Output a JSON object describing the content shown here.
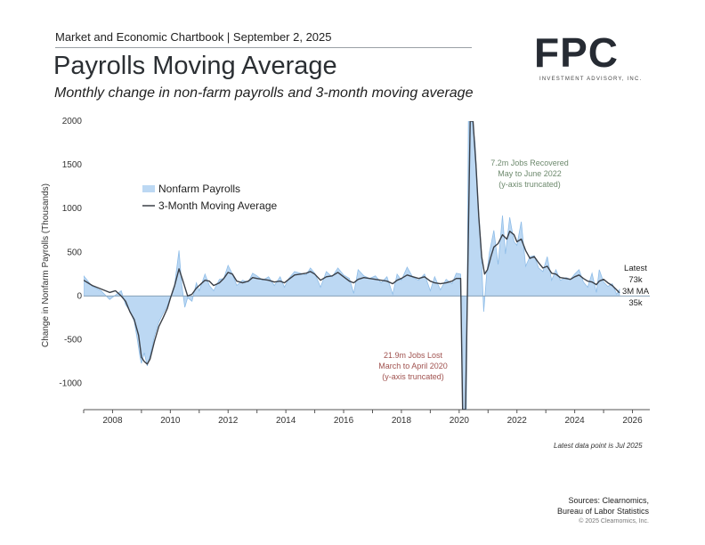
{
  "header": {
    "topline": "Market and Economic Chartbook | September 2, 2025",
    "title": "Payrolls Moving Average",
    "subtitle": "Monthly change in non-farm payrolls and 3-month moving average"
  },
  "logo": {
    "mark": "FPC",
    "sub": "INVESTMENT ADVISORY, INC."
  },
  "footer": {
    "latest_note": "Latest data point is Jul 2025",
    "sources_line1": "Sources: Clearnomics,",
    "sources_line2": "Bureau of Labor Statistics",
    "copyright": "© 2025 Clearnomics, Inc."
  },
  "colors": {
    "bars": "#bcd8f3",
    "bars_edge": "#8fbde8",
    "ma_line": "#3a3f47",
    "zero_line": "#8aa3b8",
    "annot_green": "#6e8a6e",
    "annot_red": "#a0524f"
  },
  "chart_data": {
    "type": "area",
    "ylabel": "Change in Nonfarm Payrolls (Thousands)",
    "ylim": [
      -1300,
      2000
    ],
    "yticks": [
      2000,
      1500,
      1000,
      500,
      0,
      -500,
      -1000
    ],
    "ytick_labels": [
      "2000",
      "1500",
      "1000",
      "500",
      "0",
      "-500",
      "-1000"
    ],
    "xlim": [
      2007.0,
      2026.6
    ],
    "xticks": [
      2008,
      2010,
      2012,
      2014,
      2016,
      2018,
      2020,
      2022,
      2024,
      2026
    ],
    "xtick_labels": [
      "2008",
      "2010",
      "2012",
      "2014",
      "2016",
      "2018",
      "2020",
      "2022",
      "2024",
      "2026"
    ],
    "legend": {
      "position": "upper-left",
      "entries": [
        "Nonfarm Payrolls",
        "3-Month Moving Average"
      ]
    },
    "series": [
      {
        "name": "Nonfarm Payrolls",
        "style": "filled-area",
        "points": [
          [
            2007.0,
            230
          ],
          [
            2007.3,
            110
          ],
          [
            2007.6,
            60
          ],
          [
            2007.9,
            -40
          ],
          [
            2008.1,
            10
          ],
          [
            2008.3,
            60
          ],
          [
            2008.45,
            -100
          ],
          [
            2008.6,
            -170
          ],
          [
            2008.75,
            -290
          ],
          [
            2008.85,
            -480
          ],
          [
            2008.95,
            -700
          ],
          [
            2009.0,
            -770
          ],
          [
            2009.1,
            -650
          ],
          [
            2009.2,
            -800
          ],
          [
            2009.3,
            -680
          ],
          [
            2009.45,
            -460
          ],
          [
            2009.6,
            -300
          ],
          [
            2009.75,
            -200
          ],
          [
            2009.9,
            -110
          ],
          [
            2010.0,
            -20
          ],
          [
            2010.15,
            130
          ],
          [
            2010.3,
            520
          ],
          [
            2010.4,
            120
          ],
          [
            2010.5,
            -130
          ],
          [
            2010.6,
            -20
          ],
          [
            2010.75,
            -60
          ],
          [
            2010.9,
            150
          ],
          [
            2011.0,
            60
          ],
          [
            2011.2,
            250
          ],
          [
            2011.35,
            120
          ],
          [
            2011.5,
            60
          ],
          [
            2011.7,
            190
          ],
          [
            2011.85,
            200
          ],
          [
            2012.0,
            350
          ],
          [
            2012.15,
            250
          ],
          [
            2012.3,
            120
          ],
          [
            2012.5,
            180
          ],
          [
            2012.7,
            160
          ],
          [
            2012.85,
            260
          ],
          [
            2013.0,
            230
          ],
          [
            2013.2,
            180
          ],
          [
            2013.4,
            220
          ],
          [
            2013.6,
            120
          ],
          [
            2013.8,
            220
          ],
          [
            2013.95,
            100
          ],
          [
            2014.1,
            200
          ],
          [
            2014.3,
            280
          ],
          [
            2014.5,
            260
          ],
          [
            2014.7,
            240
          ],
          [
            2014.85,
            320
          ],
          [
            2015.0,
            260
          ],
          [
            2015.2,
            100
          ],
          [
            2015.4,
            280
          ],
          [
            2015.6,
            220
          ],
          [
            2015.8,
            320
          ],
          [
            2016.0,
            240
          ],
          [
            2016.2,
            200
          ],
          [
            2016.35,
            30
          ],
          [
            2016.5,
            300
          ],
          [
            2016.7,
            230
          ],
          [
            2016.9,
            200
          ],
          [
            2017.1,
            230
          ],
          [
            2017.3,
            150
          ],
          [
            2017.5,
            220
          ],
          [
            2017.7,
            20
          ],
          [
            2017.85,
            250
          ],
          [
            2018.0,
            180
          ],
          [
            2018.2,
            330
          ],
          [
            2018.4,
            210
          ],
          [
            2018.6,
            180
          ],
          [
            2018.8,
            250
          ],
          [
            2019.0,
            60
          ],
          [
            2019.15,
            220
          ],
          [
            2019.35,
            70
          ],
          [
            2019.55,
            190
          ],
          [
            2019.75,
            140
          ],
          [
            2019.9,
            260
          ],
          [
            2020.05,
            250
          ],
          [
            2020.12,
            -1300
          ],
          [
            2020.25,
            -1300
          ],
          [
            2020.32,
            2000
          ],
          [
            2020.45,
            2000
          ],
          [
            2020.55,
            1750
          ],
          [
            2020.65,
            1100
          ],
          [
            2020.75,
            600
          ],
          [
            2020.85,
            -180
          ],
          [
            2020.95,
            250
          ],
          [
            2021.05,
            500
          ],
          [
            2021.2,
            750
          ],
          [
            2021.35,
            360
          ],
          [
            2021.5,
            920
          ],
          [
            2021.6,
            480
          ],
          [
            2021.75,
            900
          ],
          [
            2021.9,
            620
          ],
          [
            2022.0,
            580
          ],
          [
            2022.15,
            850
          ],
          [
            2022.3,
            340
          ],
          [
            2022.45,
            450
          ],
          [
            2022.6,
            460
          ],
          [
            2022.75,
            320
          ],
          [
            2022.9,
            280
          ],
          [
            2023.05,
            450
          ],
          [
            2023.2,
            180
          ],
          [
            2023.35,
            300
          ],
          [
            2023.5,
            180
          ],
          [
            2023.7,
            210
          ],
          [
            2023.85,
            190
          ],
          [
            2024.0,
            250
          ],
          [
            2024.15,
            300
          ],
          [
            2024.3,
            160
          ],
          [
            2024.45,
            100
          ],
          [
            2024.6,
            260
          ],
          [
            2024.75,
            40
          ],
          [
            2024.85,
            300
          ],
          [
            2025.0,
            160
          ],
          [
            2025.15,
            110
          ],
          [
            2025.3,
            140
          ],
          [
            2025.45,
            20
          ],
          [
            2025.55,
            73
          ]
        ]
      },
      {
        "name": "3-Month Moving Average",
        "style": "line",
        "points": [
          [
            2007.0,
            180
          ],
          [
            2007.3,
            120
          ],
          [
            2007.6,
            80
          ],
          [
            2007.9,
            40
          ],
          [
            2008.1,
            60
          ],
          [
            2008.3,
            0
          ],
          [
            2008.45,
            -60
          ],
          [
            2008.6,
            -180
          ],
          [
            2008.75,
            -270
          ],
          [
            2008.9,
            -450
          ],
          [
            2009.0,
            -700
          ],
          [
            2009.1,
            -750
          ],
          [
            2009.2,
            -780
          ],
          [
            2009.3,
            -720
          ],
          [
            2009.45,
            -520
          ],
          [
            2009.6,
            -350
          ],
          [
            2009.75,
            -250
          ],
          [
            2009.9,
            -140
          ],
          [
            2010.0,
            -30
          ],
          [
            2010.15,
            120
          ],
          [
            2010.3,
            310
          ],
          [
            2010.45,
            160
          ],
          [
            2010.6,
            0
          ],
          [
            2010.75,
            20
          ],
          [
            2010.9,
            90
          ],
          [
            2011.0,
            120
          ],
          [
            2011.2,
            180
          ],
          [
            2011.35,
            170
          ],
          [
            2011.5,
            120
          ],
          [
            2011.7,
            150
          ],
          [
            2011.85,
            200
          ],
          [
            2012.0,
            270
          ],
          [
            2012.15,
            250
          ],
          [
            2012.3,
            170
          ],
          [
            2012.5,
            150
          ],
          [
            2012.7,
            170
          ],
          [
            2012.85,
            210
          ],
          [
            2013.0,
            200
          ],
          [
            2013.2,
            190
          ],
          [
            2013.4,
            180
          ],
          [
            2013.6,
            160
          ],
          [
            2013.8,
            170
          ],
          [
            2013.95,
            150
          ],
          [
            2014.1,
            190
          ],
          [
            2014.3,
            240
          ],
          [
            2014.5,
            250
          ],
          [
            2014.7,
            260
          ],
          [
            2014.85,
            280
          ],
          [
            2015.0,
            250
          ],
          [
            2015.2,
            180
          ],
          [
            2015.4,
            220
          ],
          [
            2015.6,
            230
          ],
          [
            2015.8,
            270
          ],
          [
            2016.0,
            220
          ],
          [
            2016.2,
            170
          ],
          [
            2016.35,
            150
          ],
          [
            2016.5,
            190
          ],
          [
            2016.7,
            210
          ],
          [
            2016.9,
            200
          ],
          [
            2017.1,
            190
          ],
          [
            2017.3,
            180
          ],
          [
            2017.5,
            170
          ],
          [
            2017.7,
            140
          ],
          [
            2017.85,
            180
          ],
          [
            2018.0,
            200
          ],
          [
            2018.2,
            240
          ],
          [
            2018.4,
            220
          ],
          [
            2018.6,
            200
          ],
          [
            2018.8,
            220
          ],
          [
            2019.0,
            170
          ],
          [
            2019.15,
            150
          ],
          [
            2019.35,
            140
          ],
          [
            2019.55,
            150
          ],
          [
            2019.75,
            170
          ],
          [
            2019.9,
            200
          ],
          [
            2020.05,
            200
          ],
          [
            2020.12,
            -1300
          ],
          [
            2020.22,
            -1300
          ],
          [
            2020.38,
            2000
          ],
          [
            2020.48,
            2000
          ],
          [
            2020.58,
            1500
          ],
          [
            2020.68,
            900
          ],
          [
            2020.78,
            450
          ],
          [
            2020.88,
            250
          ],
          [
            2020.98,
            300
          ],
          [
            2021.1,
            450
          ],
          [
            2021.2,
            560
          ],
          [
            2021.35,
            600
          ],
          [
            2021.5,
            700
          ],
          [
            2021.65,
            650
          ],
          [
            2021.75,
            740
          ],
          [
            2021.9,
            700
          ],
          [
            2022.0,
            620
          ],
          [
            2022.15,
            650
          ],
          [
            2022.3,
            520
          ],
          [
            2022.45,
            430
          ],
          [
            2022.6,
            450
          ],
          [
            2022.75,
            380
          ],
          [
            2022.9,
            320
          ],
          [
            2023.05,
            340
          ],
          [
            2023.2,
            260
          ],
          [
            2023.35,
            250
          ],
          [
            2023.5,
            210
          ],
          [
            2023.7,
            200
          ],
          [
            2023.85,
            190
          ],
          [
            2024.0,
            220
          ],
          [
            2024.15,
            240
          ],
          [
            2024.3,
            200
          ],
          [
            2024.45,
            170
          ],
          [
            2024.6,
            160
          ],
          [
            2024.75,
            130
          ],
          [
            2024.85,
            170
          ],
          [
            2025.0,
            190
          ],
          [
            2025.15,
            150
          ],
          [
            2025.3,
            120
          ],
          [
            2025.45,
            70
          ],
          [
            2025.55,
            35
          ]
        ]
      }
    ],
    "annotations": [
      {
        "lines": [
          "7.2m Jobs Recovered",
          "May to June 2022",
          "(y-axis truncated)"
        ],
        "tone": "green"
      },
      {
        "lines": [
          "21.9m Jobs Lost",
          "March to April 2020",
          "(y-axis truncated)"
        ],
        "tone": "red"
      },
      {
        "lines": [
          "Latest",
          "73k",
          "3M MA",
          "35k"
        ],
        "tone": "dark"
      }
    ]
  }
}
